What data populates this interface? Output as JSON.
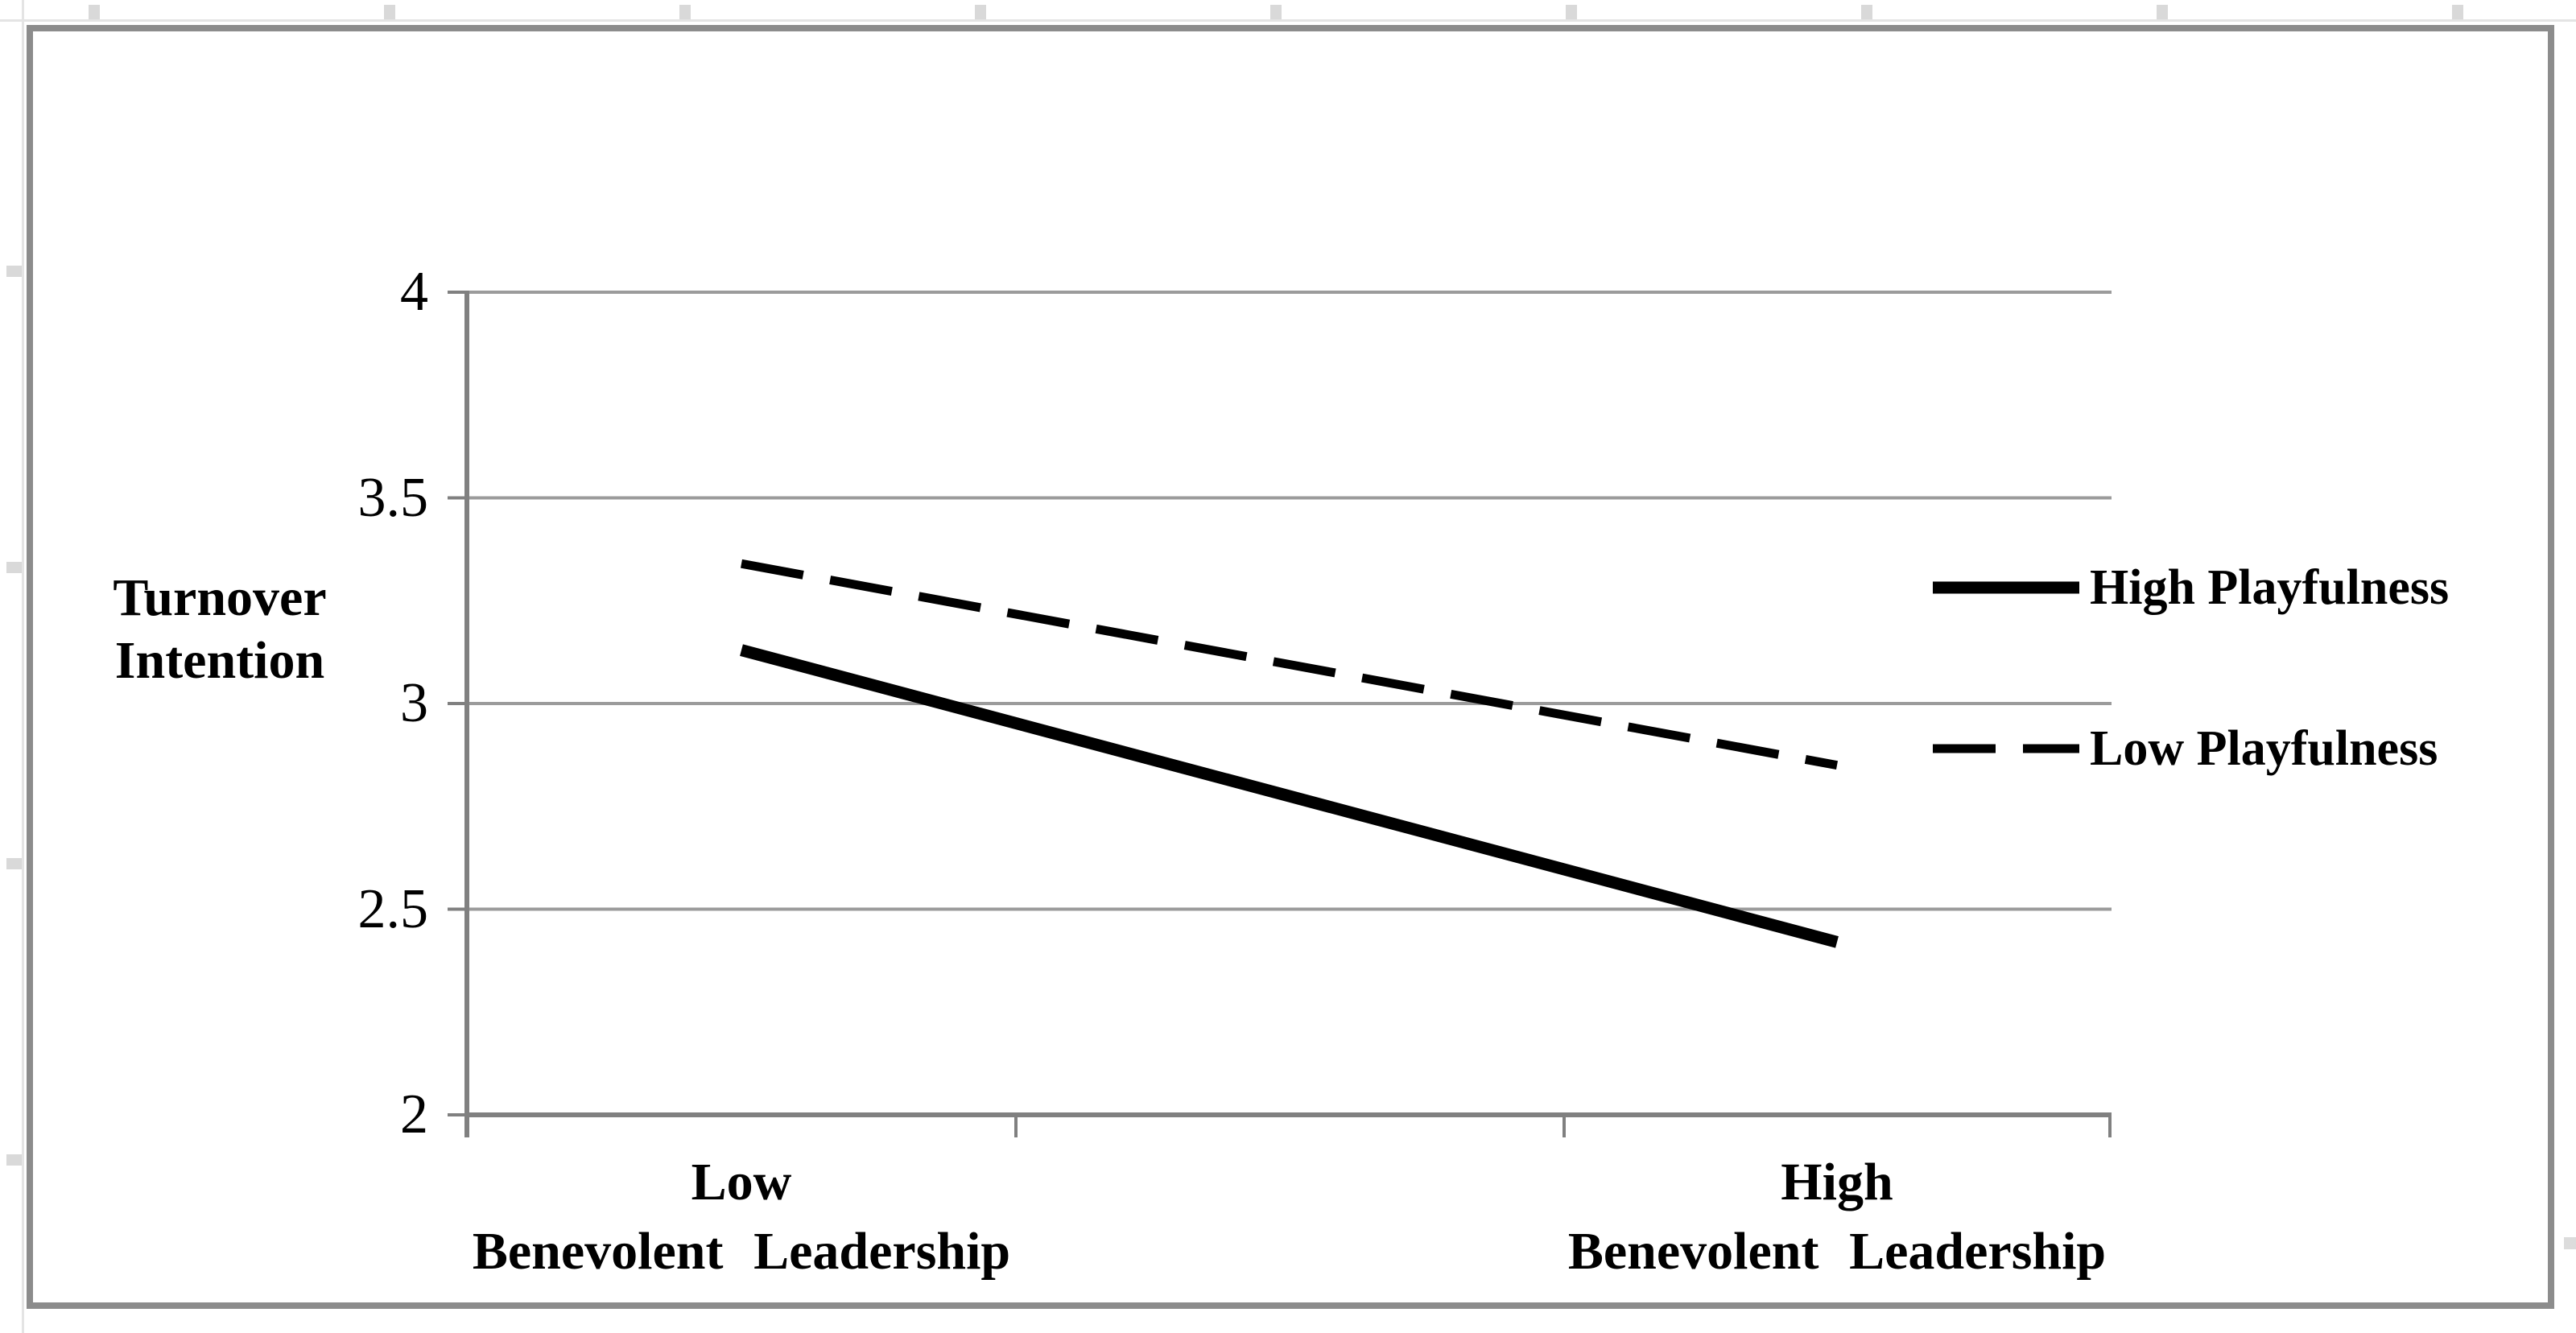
{
  "figure": {
    "background": "#ffffff",
    "border_color": "#8c8c8c"
  },
  "chart_data": {
    "type": "line",
    "title": "",
    "ylabel": "Turnover Intention",
    "ylabel_lines": [
      "Turnover",
      "Intention"
    ],
    "xlabel": "Benevolent Leadership",
    "categories": [
      "Low Benevolent Leadership",
      "High Benevolent Leadership"
    ],
    "x_tick_lines": [
      [
        "Low",
        "Benevolent  Leadership"
      ],
      [
        "High",
        "Benevolent  Leadership"
      ]
    ],
    "y_ticks": [
      4,
      3.5,
      3,
      2.5,
      2
    ],
    "y_tick_labels": [
      "4",
      "3.5",
      "3",
      "2.5",
      "2"
    ],
    "ylim": [
      2,
      4
    ],
    "grid": true,
    "legend_position": "right",
    "series": [
      {
        "name": "High Playfulness",
        "style": "solid",
        "color": "#000000",
        "values": [
          3.13,
          2.42
        ]
      },
      {
        "name": "Low Playfulness",
        "style": "dashed",
        "color": "#000000",
        "values": [
          3.34,
          2.85
        ]
      }
    ],
    "axis_color": "#808080",
    "gridline_color": "#9b9b9b",
    "line_color": "#000000"
  }
}
